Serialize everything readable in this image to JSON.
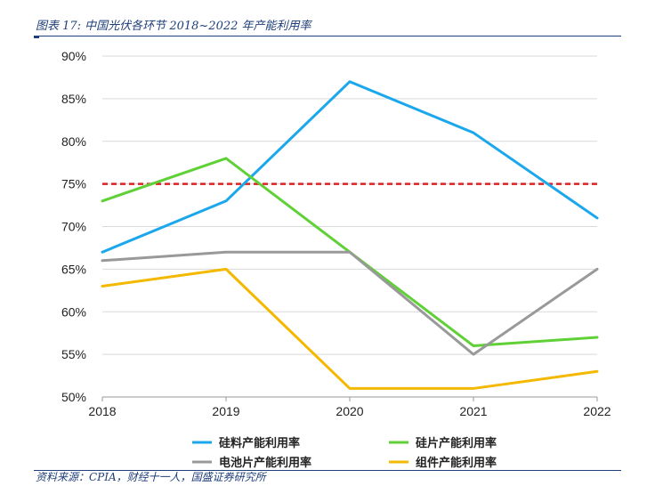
{
  "header": {
    "figure_title": "图表 17:  中国光伏各环节 2018~2022 年产能利用率"
  },
  "footer": {
    "source": "资料来源：CPIA，财经十一人，国盛证券研究所"
  },
  "chart_data": {
    "type": "line",
    "x": [
      "2018",
      "2019",
      "2020",
      "2021",
      "2022"
    ],
    "y_ticks": [
      "50%",
      "55%",
      "60%",
      "65%",
      "70%",
      "75%",
      "80%",
      "85%",
      "90%"
    ],
    "ylim": [
      50,
      90
    ],
    "grid": true,
    "legend_position": "bottom",
    "reference_line": {
      "value": 75,
      "color": "#e02020",
      "style": "dashed"
    },
    "series": [
      {
        "name": "硅料产能利用率",
        "color": "#1aa7ec",
        "values": [
          67,
          73,
          87,
          81,
          71
        ]
      },
      {
        "name": "硅片产能利用率",
        "color": "#5fd136",
        "values": [
          73,
          78,
          67,
          56,
          57
        ]
      },
      {
        "name": "电池片产能利用率",
        "color": "#999999",
        "values": [
          66,
          67,
          67,
          55,
          65
        ]
      },
      {
        "name": "组件产能利用率",
        "color": "#f5b800",
        "values": [
          63,
          65,
          51,
          51,
          53
        ]
      }
    ]
  }
}
